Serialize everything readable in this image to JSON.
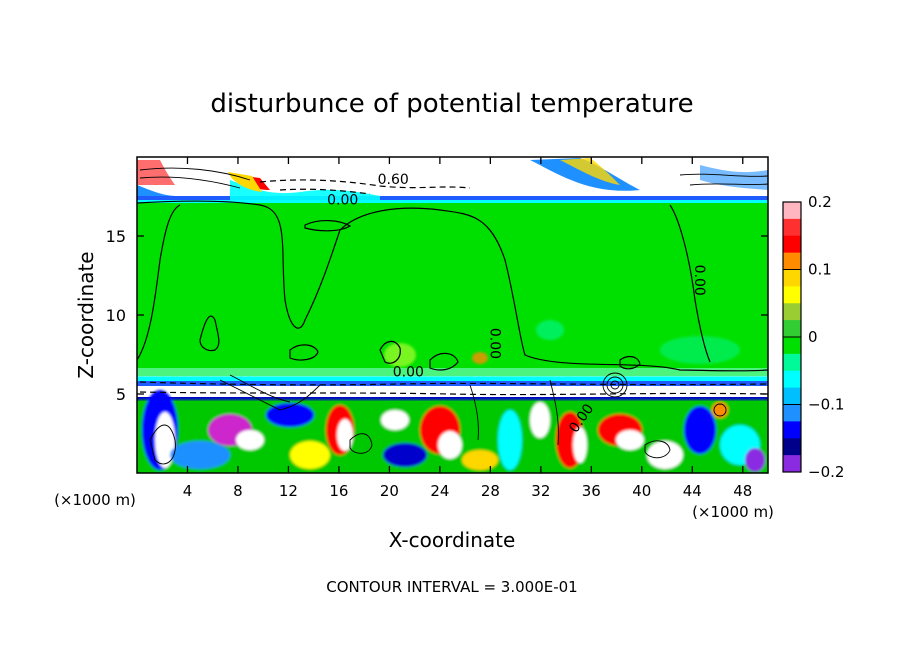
{
  "chart_data": {
    "type": "heatmap",
    "title": "disturbunce of potential temperature",
    "xlabel": "X-coordinate",
    "ylabel": "Z-coordinate",
    "x_unit": "(×1000 m)",
    "footer": "CONTOUR INTERVAL = 3.000E-01",
    "xlim": [
      0,
      50
    ],
    "ylim": [
      0,
      20
    ],
    "x_ticks": [
      4,
      8,
      12,
      16,
      20,
      24,
      28,
      32,
      36,
      40,
      44,
      48
    ],
    "x_tick_labels": [
      "4",
      "8",
      "12",
      "16",
      "20",
      "24",
      "28",
      "32",
      "36",
      "40",
      "44",
      "48"
    ],
    "y_ticks": [
      5,
      10,
      15
    ],
    "y_tick_labels": [
      "5",
      "10",
      "15"
    ],
    "colorbar": {
      "range": [
        -0.2,
        0.2
      ],
      "ticks": [
        0.2,
        0.1,
        0,
        -0.1,
        -0.2
      ],
      "tick_labels": [
        "0.2",
        "0.1",
        "0",
        "−0.1",
        "−0.2"
      ],
      "colors": [
        "#ffb6c1",
        "#ff3030",
        "#ff0000",
        "#ff8c00",
        "#ffd700",
        "#ffff00",
        "#9acd32",
        "#32cd32",
        "#00e000",
        "#00fa9a",
        "#00ffff",
        "#00bfff",
        "#1e90ff",
        "#0000ff",
        "#00008b",
        "#8a2be2"
      ]
    },
    "contour_labels": [
      {
        "text": "0.60",
        "x": 20.3,
        "z": 18.3
      },
      {
        "text": "0.00",
        "x": 16.3,
        "z": 17.0
      },
      {
        "text": "0.00",
        "x": 21.5,
        "z": 6.1
      },
      {
        "text": "0.00",
        "x": 28.0,
        "z": 8.2
      },
      {
        "text": "0.00",
        "x": 44.2,
        "z": 12.2
      },
      {
        "text": "0.00",
        "x": 35.5,
        "z": 3.3
      }
    ]
  }
}
